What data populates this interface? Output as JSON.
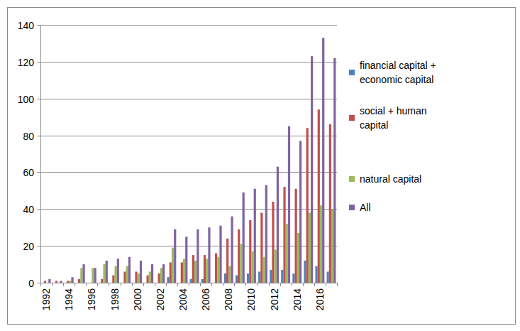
{
  "chart_data": {
    "type": "bar",
    "categories": [
      "1992",
      null,
      "1994",
      null,
      "1996",
      null,
      "1998",
      null,
      "2000",
      null,
      "2002",
      null,
      "2004",
      null,
      "2006",
      null,
      "2008",
      null,
      "2010",
      null,
      "2012",
      null,
      "2014",
      null,
      "2016",
      null
    ],
    "series": [
      {
        "name": "financial capital + economic capital",
        "color": "#4f81bd",
        "values": [
          0,
          0,
          0,
          0,
          0,
          0,
          0,
          0,
          0,
          0,
          0,
          3,
          0,
          2,
          2,
          0,
          5,
          4,
          5,
          6,
          7,
          7,
          5,
          12,
          9,
          6
        ]
      },
      {
        "name": "social +  human capital",
        "color": "#c0504d",
        "values": [
          1,
          1,
          1,
          2,
          0,
          2,
          4,
          6,
          6,
          4,
          5,
          11,
          11,
          15,
          15,
          16,
          24,
          29,
          34,
          38,
          44,
          52,
          51,
          84,
          94,
          86
        ]
      },
      {
        "name": "natural capital",
        "color": "#9bbb59",
        "values": [
          0,
          0,
          1,
          8,
          8,
          10,
          9,
          9,
          5,
          6,
          8,
          19,
          13,
          12,
          13,
          14,
          9,
          21,
          17,
          14,
          18,
          32,
          27,
          38,
          42,
          40
        ]
      },
      {
        "name": "All",
        "color": "#8064a2",
        "values": [
          2,
          1,
          3,
          10,
          8,
          12,
          13,
          14,
          12,
          10,
          10,
          29,
          25,
          29,
          30,
          31,
          36,
          49,
          51,
          53,
          63,
          85,
          77,
          123,
          133,
          122
        ]
      }
    ],
    "ylim": [
      0,
      140
    ],
    "yticks": [
      0,
      20,
      40,
      60,
      80,
      100,
      120,
      140
    ],
    "grid": true,
    "legend": "right"
  }
}
